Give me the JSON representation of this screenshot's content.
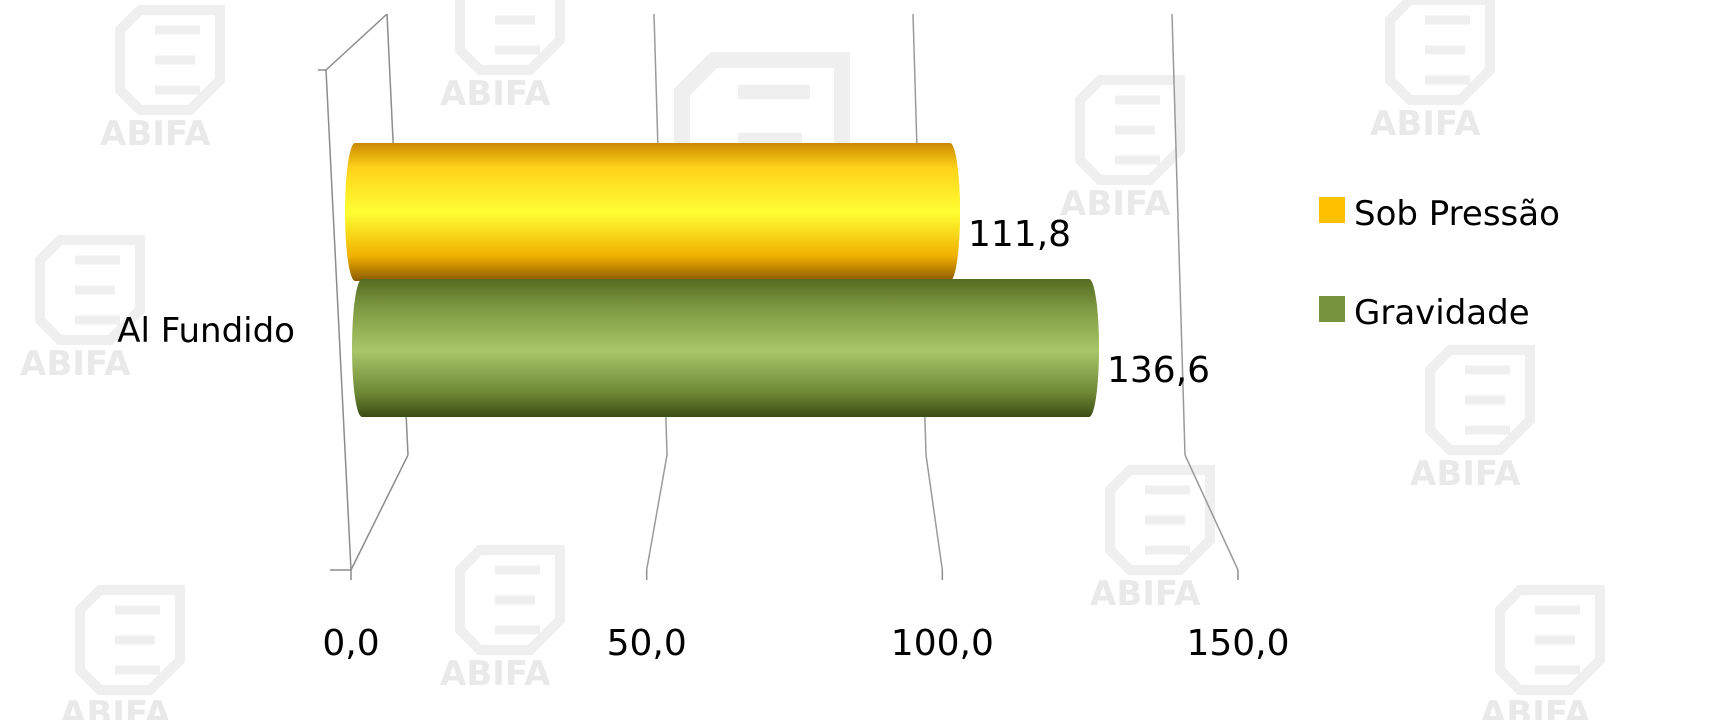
{
  "chart_data": {
    "type": "bar",
    "orientation": "horizontal",
    "style": "3d-cylinder",
    "categories": [
      "Al Fundido"
    ],
    "series": [
      {
        "name": "Sob Pressão",
        "values": [
          111.8
        ],
        "color": "#ffc000",
        "label": "111,8"
      },
      {
        "name": "Gravidade",
        "values": [
          136.6
        ],
        "color": "#77933c",
        "label": "136,6"
      }
    ],
    "xlim": [
      0,
      150
    ],
    "xticks": [
      0,
      50,
      100,
      150
    ],
    "xtick_labels": [
      "0,0",
      "50,0",
      "100,0",
      "150,0"
    ],
    "grid": true,
    "legend": "right",
    "title": "",
    "xlabel": "",
    "ylabel": ""
  },
  "watermark": {
    "text": "ABIFA"
  }
}
